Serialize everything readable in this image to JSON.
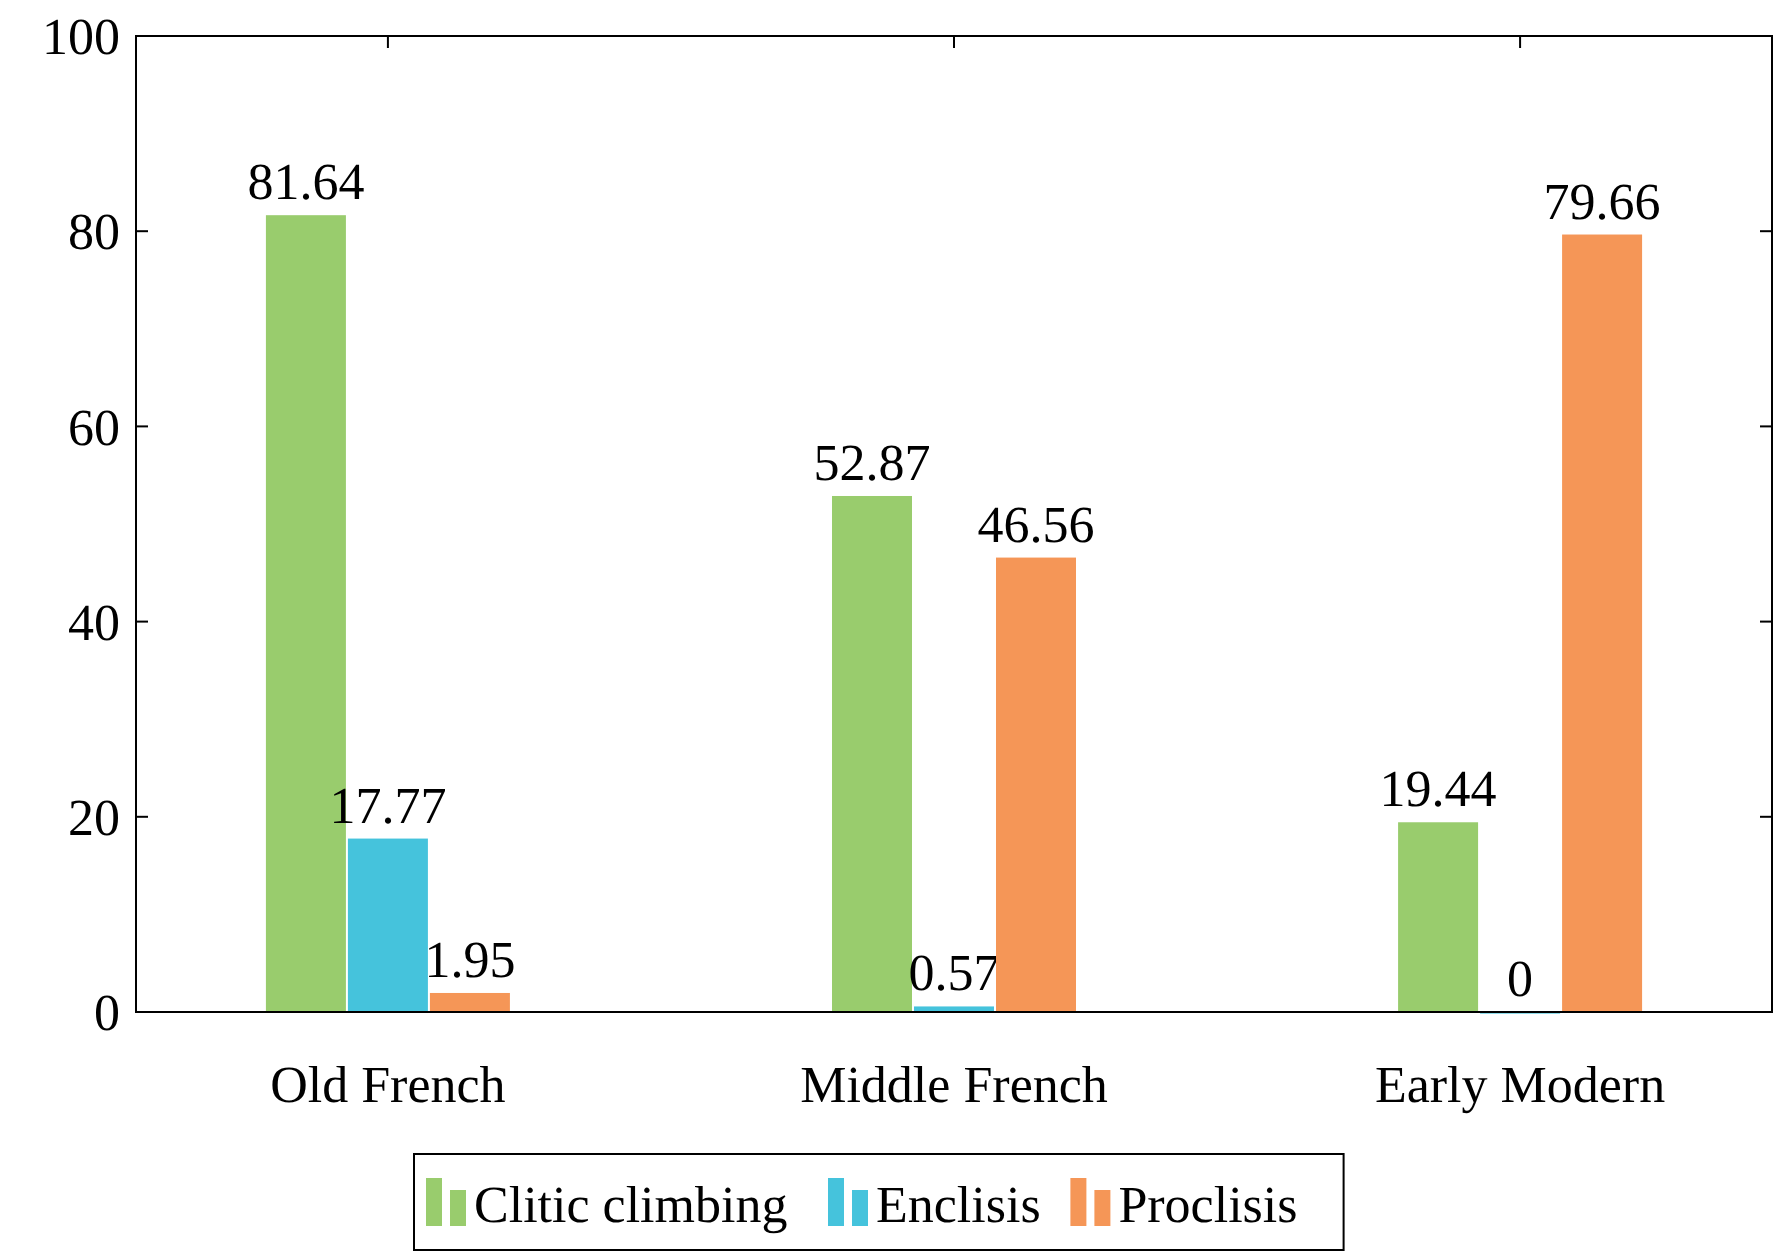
{
  "chart_data": {
    "type": "bar",
    "categories": [
      "Old French",
      "Middle French",
      "Early Modern"
    ],
    "series": [
      {
        "name": "Clitic climbing",
        "color": "#99cc6d",
        "values": [
          81.64,
          52.87,
          19.44
        ]
      },
      {
        "name": "Enclisis",
        "color": "#45c3dc",
        "values": [
          17.77,
          0.57,
          0
        ]
      },
      {
        "name": "Proclisis",
        "color": "#f59657",
        "values": [
          1.95,
          46.56,
          79.66
        ]
      }
    ],
    "ylim": [
      0,
      100
    ],
    "yticks": [
      0,
      20,
      40,
      60,
      80,
      100
    ],
    "data_labels": true,
    "legend": "bottom",
    "grid": false
  }
}
